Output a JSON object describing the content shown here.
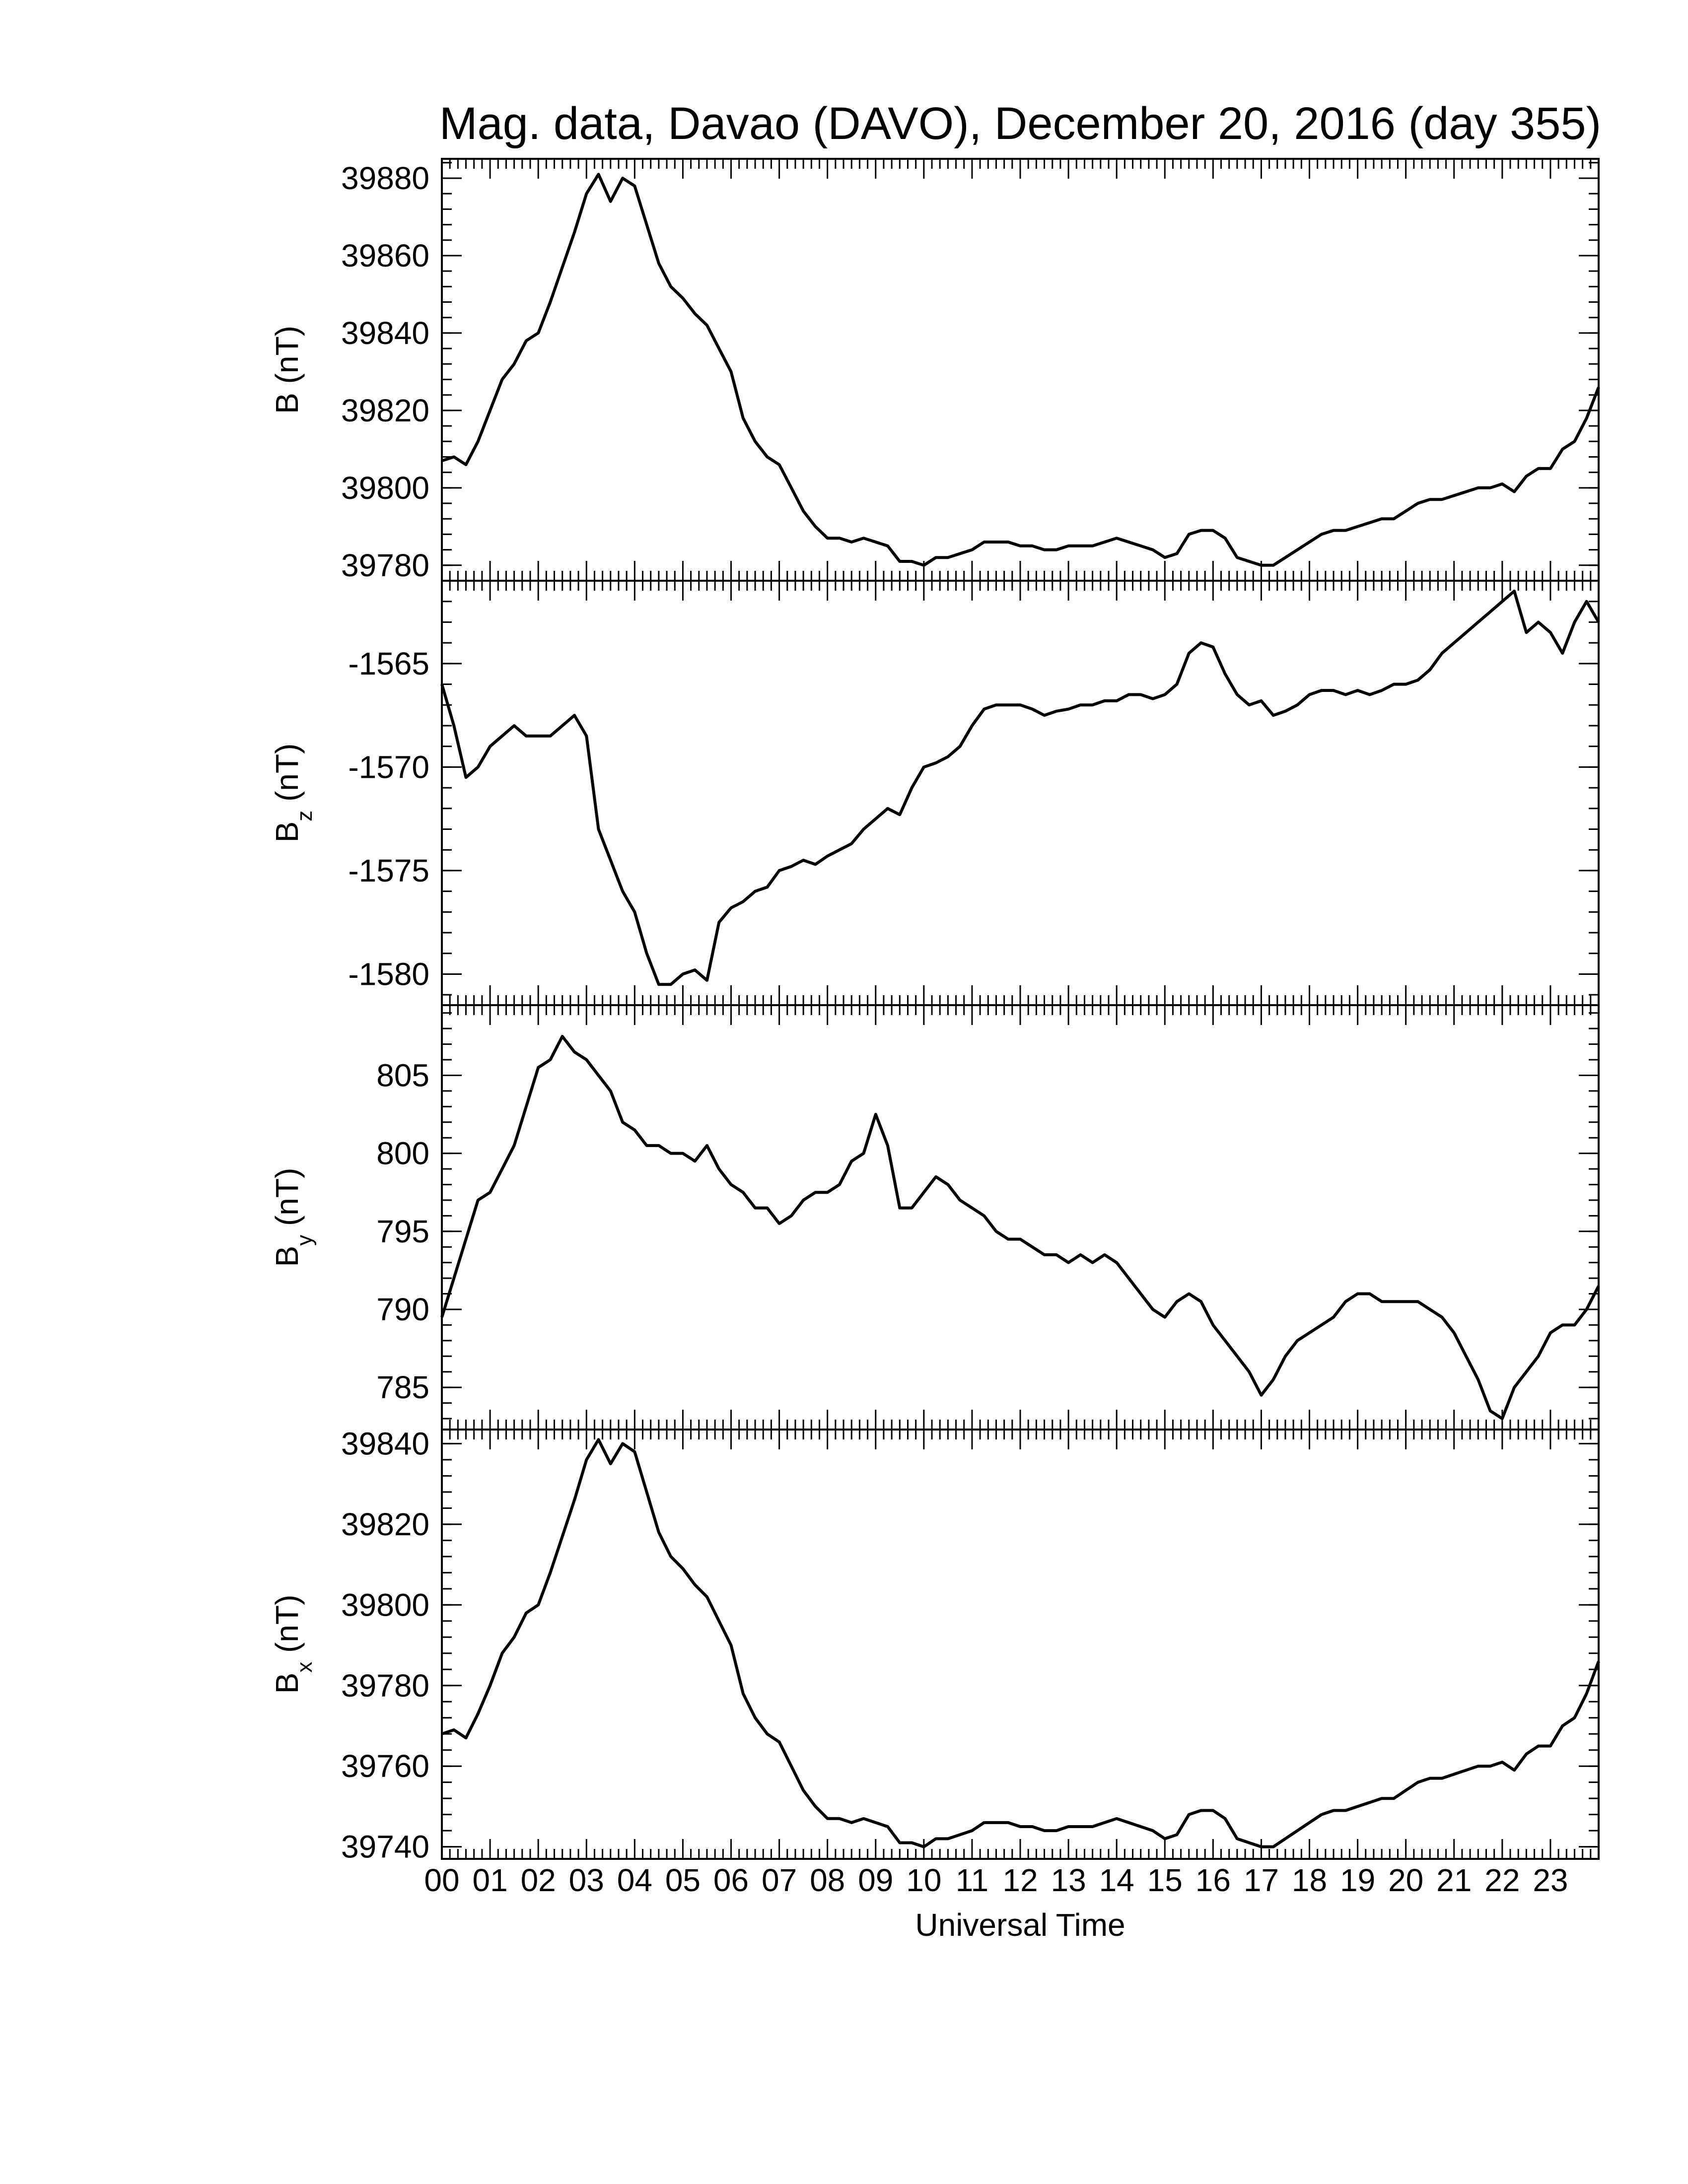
{
  "title": "Mag. data, Davao (DAVO), December 20, 2016 (day 355)",
  "xlabel": "Universal Time",
  "x_ticks": [
    "00",
    "01",
    "02",
    "03",
    "04",
    "05",
    "06",
    "07",
    "08",
    "09",
    "10",
    "11",
    "12",
    "13",
    "14",
    "15",
    "16",
    "17",
    "18",
    "19",
    "20",
    "21",
    "22",
    "23"
  ],
  "colors": {
    "line": "#000000",
    "background": "#ffffff"
  },
  "chart_data": [
    {
      "type": "line",
      "ylabel_main": "B (nT)",
      "ylabel_sub": "",
      "ylim": [
        39776,
        39885
      ],
      "yticks": [
        39780,
        39800,
        39820,
        39840,
        39860,
        39880
      ],
      "ytick_labels": [
        "39780",
        "39800",
        "39820",
        "39840",
        "39860",
        "39880"
      ],
      "xlim": [
        0,
        24
      ],
      "series": [
        {
          "x": [
            0,
            0.25,
            0.5,
            0.75,
            1,
            1.25,
            1.5,
            1.75,
            2,
            2.25,
            2.5,
            2.75,
            3,
            3.25,
            3.5,
            3.75,
            4,
            4.25,
            4.5,
            4.75,
            5,
            5.25,
            5.5,
            5.75,
            6,
            6.25,
            6.5,
            6.75,
            7,
            7.25,
            7.5,
            7.75,
            8,
            8.25,
            8.5,
            8.75,
            9,
            9.25,
            9.5,
            9.75,
            10,
            10.25,
            10.5,
            10.75,
            11,
            11.25,
            11.5,
            11.75,
            12,
            12.25,
            12.5,
            12.75,
            13,
            13.25,
            13.5,
            13.75,
            14,
            14.25,
            14.5,
            14.75,
            15,
            15.25,
            15.5,
            15.75,
            16,
            16.25,
            16.5,
            16.75,
            17,
            17.25,
            17.5,
            17.75,
            18,
            18.25,
            18.5,
            18.75,
            19,
            19.25,
            19.5,
            19.75,
            20,
            20.25,
            20.5,
            20.75,
            21,
            21.25,
            21.5,
            21.75,
            22,
            22.25,
            22.5,
            22.75,
            23,
            23.25,
            23.5,
            23.75,
            24
          ],
          "values": [
            39807,
            39808,
            39806,
            39812,
            39820,
            39828,
            39832,
            39838,
            39840,
            39848,
            39857,
            39866,
            39876,
            39881,
            39874,
            39880,
            39878,
            39868,
            39858,
            39852,
            39849,
            39845,
            39842,
            39836,
            39830,
            39818,
            39812,
            39808,
            39806,
            39800,
            39794,
            39790,
            39787,
            39787,
            39786,
            39787,
            39786,
            39785,
            39781,
            39781,
            39780,
            39782,
            39782,
            39783,
            39784,
            39786,
            39786,
            39786,
            39785,
            39785,
            39784,
            39784,
            39785,
            39785,
            39785,
            39786,
            39787,
            39786,
            39785,
            39784,
            39782,
            39783,
            39788,
            39789,
            39789,
            39787,
            39782,
            39781,
            39780,
            39780,
            39782,
            39784,
            39786,
            39788,
            39789,
            39789,
            39790,
            39791,
            39792,
            39792,
            39794,
            39796,
            39797,
            39797,
            39798,
            39799,
            39800,
            39800,
            39801,
            39799,
            39803,
            39805,
            39805,
            39810,
            39812,
            39818,
            39826
          ]
        }
      ]
    },
    {
      "type": "line",
      "ylabel_main": "B",
      "ylabel_sub": "z",
      "ylabel_unit": " (nT)",
      "ylim": [
        -1581.5,
        -1561
      ],
      "yticks": [
        -1580,
        -1575,
        -1570,
        -1565
      ],
      "ytick_labels": [
        "-1580",
        "-1575",
        "-1570",
        "-1565"
      ],
      "xlim": [
        0,
        24
      ],
      "series": [
        {
          "x": [
            0,
            0.25,
            0.5,
            0.75,
            1,
            1.25,
            1.5,
            1.75,
            2,
            2.25,
            2.5,
            2.75,
            3,
            3.25,
            3.5,
            3.75,
            4,
            4.25,
            4.5,
            4.75,
            5,
            5.25,
            5.5,
            5.75,
            6,
            6.25,
            6.5,
            6.75,
            7,
            7.25,
            7.5,
            7.75,
            8,
            8.25,
            8.5,
            8.75,
            9,
            9.25,
            9.5,
            9.75,
            10,
            10.25,
            10.5,
            10.75,
            11,
            11.25,
            11.5,
            11.75,
            12,
            12.25,
            12.5,
            12.75,
            13,
            13.25,
            13.5,
            13.75,
            14,
            14.25,
            14.5,
            14.75,
            15,
            15.25,
            15.5,
            15.75,
            16,
            16.25,
            16.5,
            16.75,
            17,
            17.25,
            17.5,
            17.75,
            18,
            18.25,
            18.5,
            18.75,
            19,
            19.25,
            19.5,
            19.75,
            20,
            20.25,
            20.5,
            20.75,
            21,
            21.25,
            21.5,
            21.75,
            22,
            22.25,
            22.5,
            22.75,
            23,
            23.25,
            23.5,
            23.75,
            24
          ],
          "values": [
            -1566,
            -1568,
            -1570.5,
            -1570,
            -1569,
            -1568.5,
            -1568,
            -1568.5,
            -1568.5,
            -1568.5,
            -1568,
            -1567.5,
            -1568.5,
            -1573,
            -1574.5,
            -1576,
            -1577,
            -1579,
            -1580.5,
            -1580.5,
            -1580,
            -1579.8,
            -1580.3,
            -1577.5,
            -1576.8,
            -1576.5,
            -1576,
            -1575.8,
            -1575,
            -1574.8,
            -1574.5,
            -1574.7,
            -1574.3,
            -1574,
            -1573.7,
            -1573,
            -1572.5,
            -1572,
            -1572.3,
            -1571,
            -1570,
            -1569.8,
            -1569.5,
            -1569,
            -1568,
            -1567.2,
            -1567,
            -1567,
            -1567,
            -1567.2,
            -1567.5,
            -1567.3,
            -1567.2,
            -1567,
            -1567,
            -1566.8,
            -1566.8,
            -1566.5,
            -1566.5,
            -1566.7,
            -1566.5,
            -1566,
            -1564.5,
            -1564,
            -1564.2,
            -1565.5,
            -1566.5,
            -1567,
            -1566.8,
            -1567.5,
            -1567.3,
            -1567,
            -1566.5,
            -1566.3,
            -1566.3,
            -1566.5,
            -1566.3,
            -1566.5,
            -1566.3,
            -1566,
            -1566,
            -1565.8,
            -1565.3,
            -1564.5,
            -1564,
            -1563.5,
            -1563,
            -1562.5,
            -1562,
            -1561.5,
            -1563.5,
            -1563,
            -1563.5,
            -1564.5,
            -1563,
            -1562,
            -1563
          ]
        }
      ]
    },
    {
      "type": "line",
      "ylabel_main": "B",
      "ylabel_sub": "y",
      "ylabel_unit": " (nT)",
      "ylim": [
        782.3,
        809.5
      ],
      "yticks": [
        785,
        790,
        795,
        800,
        805
      ],
      "ytick_labels": [
        "785",
        "790",
        "795",
        "800",
        "805"
      ],
      "xlim": [
        0,
        24
      ],
      "series": [
        {
          "x": [
            0,
            0.25,
            0.5,
            0.75,
            1,
            1.25,
            1.5,
            1.75,
            2,
            2.25,
            2.5,
            2.75,
            3,
            3.25,
            3.5,
            3.75,
            4,
            4.25,
            4.5,
            4.75,
            5,
            5.25,
            5.5,
            5.75,
            6,
            6.25,
            6.5,
            6.75,
            7,
            7.25,
            7.5,
            7.75,
            8,
            8.25,
            8.5,
            8.75,
            9,
            9.25,
            9.5,
            9.75,
            10,
            10.25,
            10.5,
            10.75,
            11,
            11.25,
            11.5,
            11.75,
            12,
            12.25,
            12.5,
            12.75,
            13,
            13.25,
            13.5,
            13.75,
            14,
            14.25,
            14.5,
            14.75,
            15,
            15.25,
            15.5,
            15.75,
            16,
            16.25,
            16.5,
            16.75,
            17,
            17.25,
            17.5,
            17.75,
            18,
            18.25,
            18.5,
            18.75,
            19,
            19.25,
            19.5,
            19.75,
            20,
            20.25,
            20.5,
            20.75,
            21,
            21.25,
            21.5,
            21.75,
            22,
            22.25,
            22.5,
            22.75,
            23,
            23.25,
            23.5,
            23.75,
            24
          ],
          "values": [
            789.5,
            792,
            794.5,
            797,
            797.5,
            799,
            800.5,
            803,
            805.5,
            806,
            807.5,
            806.5,
            806,
            805,
            804,
            802,
            801.5,
            800.5,
            800.5,
            800,
            800,
            799.5,
            800.5,
            799,
            798,
            797.5,
            796.5,
            796.5,
            795.5,
            796,
            797,
            797.5,
            797.5,
            798,
            799.5,
            800,
            802.5,
            800.5,
            796.5,
            796.5,
            797.5,
            798.5,
            798,
            797,
            796.5,
            796,
            795,
            794.5,
            794.5,
            794,
            793.5,
            793.5,
            793,
            793.5,
            793,
            793.5,
            793,
            792,
            791,
            790,
            789.5,
            790.5,
            791,
            790.5,
            789,
            788,
            787,
            786,
            784.5,
            785.5,
            787,
            788,
            788.5,
            789,
            789.5,
            790.5,
            791,
            791,
            790.5,
            790.5,
            790.5,
            790.5,
            790,
            789.5,
            788.5,
            787,
            785.5,
            783.5,
            783,
            785,
            786,
            787,
            788.5,
            789,
            789,
            790,
            791.5
          ]
        }
      ]
    },
    {
      "type": "line",
      "ylabel_main": "B",
      "ylabel_sub": "x",
      "ylabel_unit": " (nT)",
      "ylim": [
        39737,
        39843.5
      ],
      "yticks": [
        39740,
        39760,
        39780,
        39800,
        39820,
        39840
      ],
      "ytick_labels": [
        "39740",
        "39760",
        "39780",
        "39800",
        "39820",
        "39840"
      ],
      "xlim": [
        0,
        24
      ],
      "series": [
        {
          "x": [
            0,
            0.25,
            0.5,
            0.75,
            1,
            1.25,
            1.5,
            1.75,
            2,
            2.25,
            2.5,
            2.75,
            3,
            3.25,
            3.5,
            3.75,
            4,
            4.25,
            4.5,
            4.75,
            5,
            5.25,
            5.5,
            5.75,
            6,
            6.25,
            6.5,
            6.75,
            7,
            7.25,
            7.5,
            7.75,
            8,
            8.25,
            8.5,
            8.75,
            9,
            9.25,
            9.5,
            9.75,
            10,
            10.25,
            10.5,
            10.75,
            11,
            11.25,
            11.5,
            11.75,
            12,
            12.25,
            12.5,
            12.75,
            13,
            13.25,
            13.5,
            13.75,
            14,
            14.25,
            14.5,
            14.75,
            15,
            15.25,
            15.5,
            15.75,
            16,
            16.25,
            16.5,
            16.75,
            17,
            17.25,
            17.5,
            17.75,
            18,
            18.25,
            18.5,
            18.75,
            19,
            19.25,
            19.5,
            19.75,
            20,
            20.25,
            20.5,
            20.75,
            21,
            21.25,
            21.5,
            21.75,
            22,
            22.25,
            22.5,
            22.75,
            23,
            23.25,
            23.5,
            23.75,
            24
          ],
          "values": [
            39768,
            39769,
            39767,
            39773,
            39780,
            39788,
            39792,
            39798,
            39800,
            39808,
            39817,
            39826,
            39836,
            39841,
            39835,
            39840,
            39838,
            39828,
            39818,
            39812,
            39809,
            39805,
            39802,
            39796,
            39790,
            39778,
            39772,
            39768,
            39766,
            39760,
            39754,
            39750,
            39747,
            39747,
            39746,
            39747,
            39746,
            39745,
            39741,
            39741,
            39740,
            39742,
            39742,
            39743,
            39744,
            39746,
            39746,
            39746,
            39745,
            39745,
            39744,
            39744,
            39745,
            39745,
            39745,
            39746,
            39747,
            39746,
            39745,
            39744,
            39742,
            39743,
            39748,
            39749,
            39749,
            39747,
            39742,
            39741,
            39740,
            39740,
            39742,
            39744,
            39746,
            39748,
            39749,
            39749,
            39750,
            39751,
            39752,
            39752,
            39754,
            39756,
            39757,
            39757,
            39758,
            39759,
            39760,
            39760,
            39761,
            39759,
            39763,
            39765,
            39765,
            39770,
            39772,
            39778,
            39786
          ]
        }
      ]
    }
  ]
}
